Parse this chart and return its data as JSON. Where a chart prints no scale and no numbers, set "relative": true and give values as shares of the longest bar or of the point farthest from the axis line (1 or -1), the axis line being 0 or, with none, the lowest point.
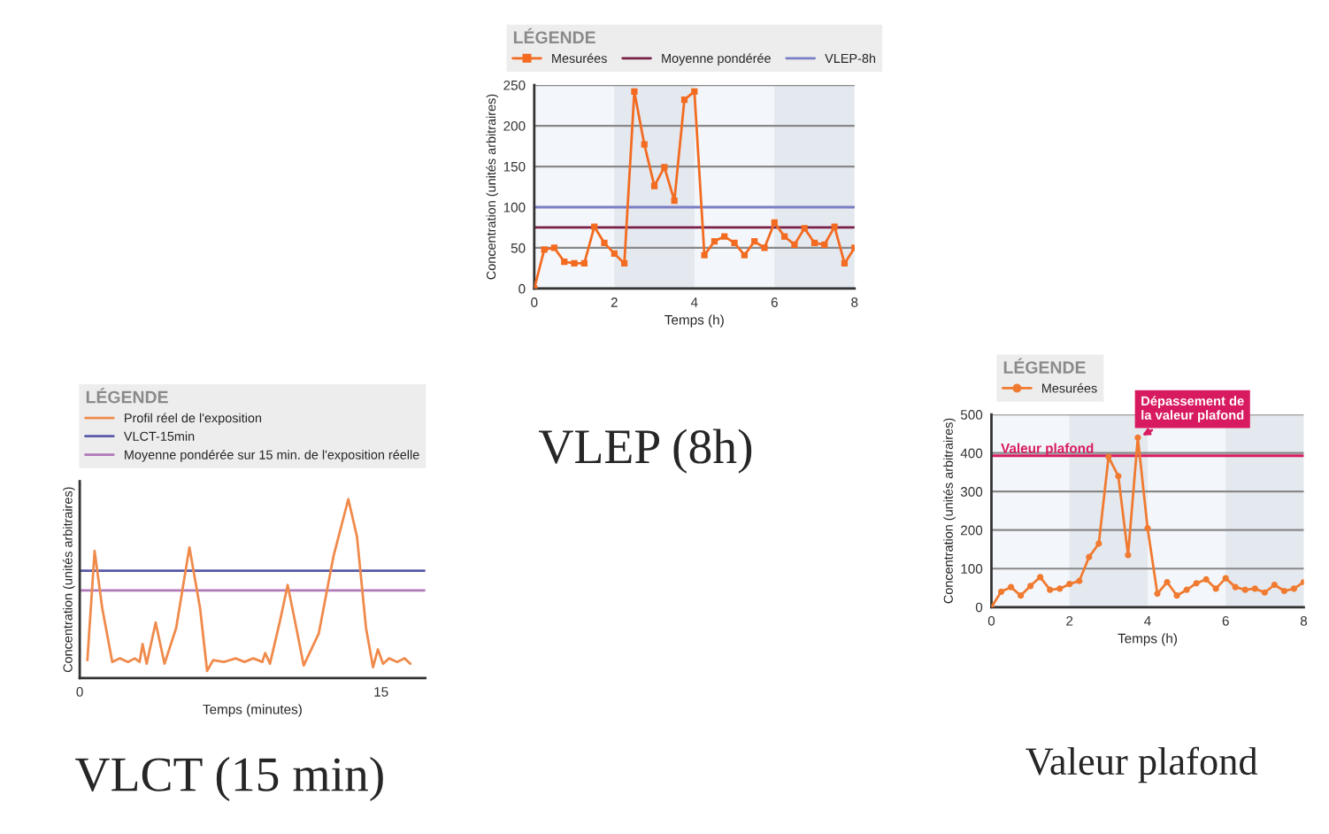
{
  "chart_data": [
    {
      "type": "line",
      "legend_title": "LÉGENDE",
      "xlabel": "Temps (h)",
      "ylabel": "Concentration (unités arbitraires)",
      "annotations": [
        "VLEP (8h)"
      ],
      "marker": "square",
      "legend": "top",
      "grid": "y",
      "x": [
        0,
        0.25,
        0.5,
        0.75,
        1,
        1.25,
        1.5,
        1.75,
        2,
        2.25,
        2.5,
        2.75,
        3,
        3.25,
        3.5,
        3.75,
        4,
        4.25,
        4.5,
        4.75,
        5,
        5.25,
        5.5,
        5.75,
        6,
        6.25,
        6.5,
        6.75,
        7,
        7.25,
        7.5,
        7.75,
        8
      ],
      "series": [
        {
          "name": "Mesurées",
          "color": "#f26b21",
          "values": [
            0,
            48,
            50,
            33,
            31,
            31,
            76,
            56,
            43,
            31,
            242,
            177,
            126,
            149,
            108,
            232,
            242,
            41,
            58,
            64,
            56,
            41,
            58,
            50,
            81,
            64,
            54,
            74,
            56,
            54,
            76,
            31,
            50
          ]
        }
      ],
      "ref_lines": [
        {
          "axis": "y",
          "value": 75,
          "label": "Moyenne pondérée",
          "color": "#7a2048"
        },
        {
          "axis": "y",
          "value": 100,
          "label": "VLEP-8h",
          "color": "#7b7fc4"
        }
      ],
      "bands": [
        {
          "axis": "x",
          "from": 2,
          "to": 4,
          "color": "#e4e8ef"
        },
        {
          "axis": "x",
          "from": 6,
          "to": 8,
          "color": "#e4e8ef"
        }
      ],
      "xlim": [
        0,
        8
      ],
      "xticks": [
        0,
        2,
        4,
        6,
        8
      ],
      "ylim": [
        0,
        250
      ],
      "yticks": [
        0,
        50,
        100,
        150,
        200,
        250
      ]
    },
    {
      "type": "line",
      "legend_title": "LÉGENDE",
      "xlabel": "Temps (minutes)",
      "ylabel": "Concentration (unités arbitraires)",
      "annotations": [
        "VLCT (15 min)"
      ],
      "relative": true,
      "legend": "top",
      "series": [
        {
          "name": "Profil réel de l'exposition",
          "color": "#f08a4b",
          "x": [
            0.38,
            0.74,
            1.12,
            1.62,
            2.0,
            2.4,
            2.74,
            2.98,
            3.13,
            3.33,
            3.78,
            4.22,
            4.8,
            5.46,
            5.99,
            6.34,
            6.64,
            7.17,
            7.76,
            8.2,
            8.64,
            9.09,
            9.23,
            9.47,
            9.97,
            10.35,
            10.71,
            11.15,
            11.9,
            12.63,
            13.37,
            13.8,
            14.25,
            14.6,
            14.84,
            15.1,
            15.4,
            15.8,
            16.17,
            16.46
          ],
          "values": [
            0.1,
            0.71,
            0.39,
            0.09,
            0.11,
            0.09,
            0.11,
            0.09,
            0.19,
            0.08,
            0.31,
            0.08,
            0.28,
            0.73,
            0.39,
            0.04,
            0.1,
            0.09,
            0.11,
            0.09,
            0.11,
            0.09,
            0.14,
            0.08,
            0.32,
            0.52,
            0.32,
            0.07,
            0.25,
            0.68,
            1.0,
            0.79,
            0.28,
            0.06,
            0.16,
            0.08,
            0.11,
            0.09,
            0.11,
            0.08
          ]
        }
      ],
      "ref_lines": [
        {
          "axis": "y",
          "value": 0.6,
          "label": "VLCT-15min",
          "color": "#5a5aa8"
        },
        {
          "axis": "y",
          "value": 0.49,
          "label": "Moyenne pondérée sur 15 min. de l'exposition réelle",
          "color": "#b07ab8"
        }
      ],
      "xlim": [
        0,
        17.2
      ],
      "xticks": [
        0,
        15
      ]
    },
    {
      "type": "line",
      "legend_title": "LÉGENDE",
      "xlabel": "Temps (h)",
      "ylabel": "Concentration (unités arbitraires)",
      "marker": "circle",
      "legend": "top left",
      "grid": "y",
      "annotations": [
        {
          "text": "Dépassement de\nla valeur plafond",
          "x": 3.75,
          "y": 440
        },
        "Valeur plafond"
      ],
      "x": [
        0,
        0.25,
        0.5,
        0.75,
        1,
        1.25,
        1.5,
        1.75,
        2,
        2.25,
        2.5,
        2.75,
        3,
        3.25,
        3.5,
        3.75,
        4,
        4.25,
        4.5,
        4.75,
        5,
        5.25,
        5.5,
        5.75,
        6,
        6.25,
        6.5,
        6.75,
        7,
        7.25,
        7.5,
        7.75,
        8
      ],
      "series": [
        {
          "name": "Mesurées",
          "color": "#f07a30",
          "values": [
            0,
            40,
            52,
            30,
            55,
            78,
            45,
            48,
            60,
            68,
            130,
            165,
            390,
            340,
            135,
            440,
            205,
            35,
            65,
            30,
            45,
            62,
            72,
            48,
            75,
            52,
            45,
            48,
            38,
            58,
            42,
            48,
            65
          ]
        }
      ],
      "ref_lines": [
        {
          "axis": "y",
          "value": 393,
          "label": "Valeur plafond",
          "color": "#d81b60"
        }
      ],
      "bands": [
        {
          "axis": "x",
          "from": 2,
          "to": 4,
          "color": "#e4e8ef"
        },
        {
          "axis": "x",
          "from": 6,
          "to": 8,
          "color": "#e4e8ef"
        }
      ],
      "xlim": [
        0,
        8
      ],
      "xticks": [
        0,
        2,
        4,
        6,
        8
      ],
      "ylim": [
        0,
        500
      ],
      "yticks": [
        0,
        100,
        200,
        300,
        400,
        500
      ]
    }
  ]
}
